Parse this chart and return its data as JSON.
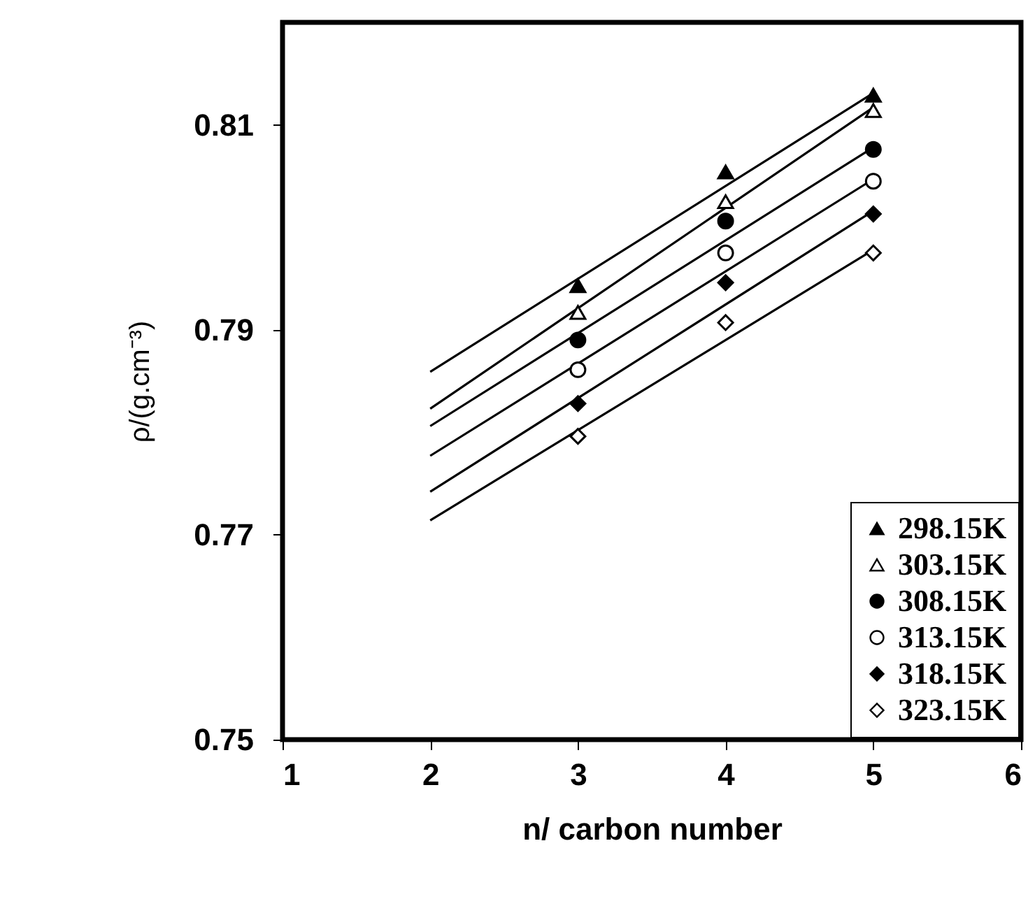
{
  "chart_data": {
    "type": "scatter",
    "xlabel": "n/ carbon number",
    "ylabel": "ρ/(g.cm⁻³)",
    "xlim": [
      1,
      6
    ],
    "xticks": [
      1,
      2,
      3,
      4,
      5,
      6
    ],
    "ylim": [
      0.75,
      0.82
    ],
    "yticks": [
      0.75,
      0.77,
      0.79,
      0.81
    ],
    "grid": false,
    "legend": "bottom right",
    "series": [
      {
        "name": "298.15K",
        "marker": "triangle",
        "color": "#000000",
        "x": [
          3,
          4,
          5
        ],
        "values": [
          0.7943,
          0.8054,
          0.8129
        ]
      },
      {
        "name": "303.15K",
        "marker": "triangle-open",
        "color": "#000000",
        "x": [
          3,
          4,
          5
        ],
        "values": [
          0.7917,
          0.8025,
          0.8114
        ]
      },
      {
        "name": "308.15K",
        "marker": "circle",
        "color": "#000000",
        "x": [
          3,
          4,
          5
        ],
        "values": [
          0.789,
          0.8006,
          0.8076
        ]
      },
      {
        "name": "313.15K",
        "marker": "circle-open",
        "color": "#000000",
        "x": [
          3,
          4,
          5
        ],
        "values": [
          0.7861,
          0.7975,
          0.8045
        ]
      },
      {
        "name": "318.15K",
        "marker": "diamond",
        "color": "#000000",
        "x": [
          3,
          4,
          5
        ],
        "values": [
          0.7828,
          0.7946,
          0.8013
        ]
      },
      {
        "name": "323.15K",
        "marker": "diamond-open",
        "color": "#000000",
        "x": [
          3,
          4,
          5
        ],
        "values": [
          0.7796,
          0.7907,
          0.7975
        ]
      },
      {
        "type": "line",
        "color": "#000000",
        "x": [
          2,
          5
        ],
        "values": [
          0.7859,
          0.8131
        ]
      },
      {
        "type": "line",
        "color": "#000000",
        "x": [
          2,
          5
        ],
        "values": [
          0.7823,
          0.8117
        ]
      },
      {
        "type": "line",
        "color": "#000000",
        "x": [
          2,
          5
        ],
        "values": [
          0.7806,
          0.8078
        ]
      },
      {
        "type": "line",
        "color": "#000000",
        "x": [
          2,
          5
        ],
        "values": [
          0.7777,
          0.8047
        ]
      },
      {
        "type": "line",
        "color": "#000000",
        "x": [
          2,
          5
        ],
        "values": [
          0.7742,
          0.8016
        ]
      },
      {
        "type": "line",
        "color": "#000000",
        "x": [
          2,
          5
        ],
        "values": [
          0.7714,
          0.7978
        ]
      }
    ]
  }
}
